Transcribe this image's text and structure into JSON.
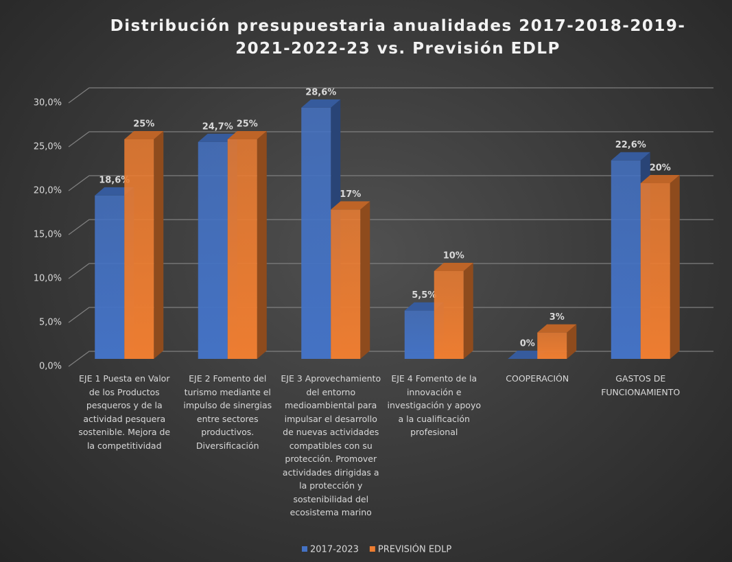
{
  "chart_data": {
    "type": "bar",
    "title": "Distribución presupuestaria anualidades 2017-2018-2019-2021-2022-23 vs. Previsión EDLP",
    "categories": [
      "EJE 1 Puesta en Valor de los Productos pesqueros y de la actividad pesquera sostenible. Mejora de la competitividad",
      "EJE 2 Fomento del turismo mediante el impulso de sinergias entre sectores productivos. Diversificación",
      "EJE 3 Aprovechamiento del entorno medioambiental para impulsar el desarrollo de nuevas actividades compatibles con su protección. Promover actividades dirigidas a la protección y sostenibilidad del ecosistema marino",
      "EJE 4 Fomento de la innovación e investigación y apoyo a la cualificación profesional",
      "COOPERACIÓN",
      "GASTOS DE FUNCIONAMIENTO"
    ],
    "series": [
      {
        "name": "2017-2023",
        "color": "#4472c4",
        "values": [
          18.6,
          24.7,
          28.6,
          5.5,
          0,
          22.6
        ],
        "value_labels": [
          "18,6%",
          "24,7%",
          "28,6%",
          "5,5%",
          "0%",
          "22,6%"
        ]
      },
      {
        "name": "PREVISIÓN EDLP",
        "color": "#ed7d31",
        "values": [
          25,
          25,
          17,
          10,
          3,
          20
        ],
        "value_labels": [
          "25%",
          "25%",
          "17%",
          "10%",
          "3%",
          "20%"
        ]
      }
    ],
    "ylim": [
      0,
      30
    ],
    "yticks": [
      {
        "value": 0,
        "label": "0,0%"
      },
      {
        "value": 5,
        "label": "5,0%"
      },
      {
        "value": 10,
        "label": "10,0%"
      },
      {
        "value": 15,
        "label": "15,0%"
      },
      {
        "value": 20,
        "label": "20,0%"
      },
      {
        "value": 25,
        "label": "25,0%"
      },
      {
        "value": 30,
        "label": "30,0%"
      }
    ],
    "grid": true,
    "legend": "bottom"
  }
}
